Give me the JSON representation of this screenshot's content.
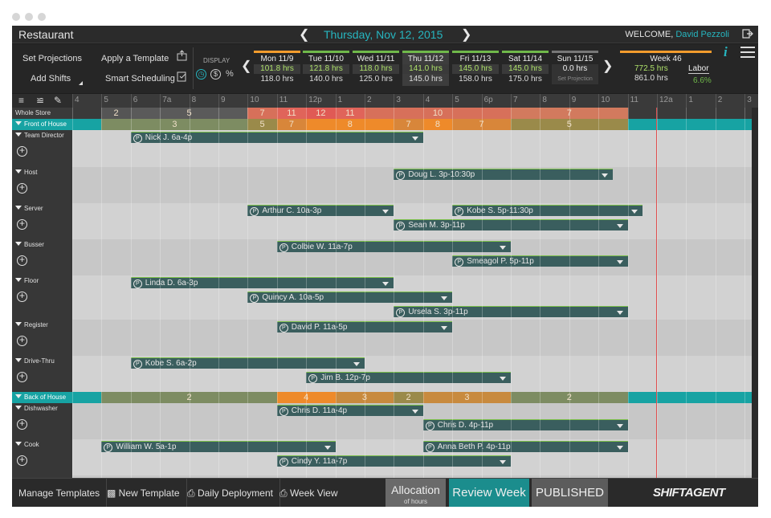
{
  "header": {
    "app_name": "Restaurant",
    "current_date": "Thursday, Nov 12, 2015",
    "welcome_label": "WELCOME,",
    "user_name": "David Pezzoli"
  },
  "controls": {
    "set_projections": "Set Projections",
    "add_shifts": "Add Shifts",
    "apply_template": "Apply a Template",
    "smart_scheduling": "Smart Scheduling",
    "display_label": "DISPLAY",
    "percent": "%"
  },
  "days": [
    {
      "label": "Mon 11/9",
      "hours": "101.8 hrs",
      "projection": "118.0 hrs"
    },
    {
      "label": "Tue 11/10",
      "hours": "121.8 hrs",
      "projection": "140.0 hrs"
    },
    {
      "label": "Wed 11/11",
      "hours": "118.0 hrs",
      "projection": "125.0 hrs"
    },
    {
      "label": "Thu 11/12",
      "hours": "141.0 hrs",
      "projection": "145.0 hrs"
    },
    {
      "label": "Fri 11/13",
      "hours": "145.0 hrs",
      "projection": "158.0 hrs"
    },
    {
      "label": "Sat 11/14",
      "hours": "145.0 hrs",
      "projection": "175.0 hrs"
    },
    {
      "label": "Sun 11/15",
      "hours": "0.0 hrs",
      "projection": "Set Projection"
    }
  ],
  "week": {
    "label": "Week 46",
    "hours": "772.5 hrs",
    "projection": "861.0 hrs",
    "labor_label": "Labor",
    "labor_value": "6.6%"
  },
  "timeline": [
    "4",
    "5",
    "6",
    "7a",
    "8",
    "9",
    "10",
    "11",
    "12p",
    "1",
    "2",
    "3",
    "4",
    "5",
    "6p",
    "7",
    "8",
    "9",
    "10",
    "11",
    "12a",
    "1",
    "2",
    "3"
  ],
  "summary": {
    "whole_store": {
      "label": "Whole Store",
      "segments": [
        {
          "v": "2",
          "c": "#555"
        },
        {
          "v": "5",
          "c": "#5a5a5a"
        },
        {
          "v": "7",
          "c": "#d7705a"
        },
        {
          "v": "11",
          "c": "#e0645a"
        },
        {
          "v": "12",
          "c": "#e05a55"
        },
        {
          "v": "11",
          "c": "#e0645a"
        },
        {
          "v": "10",
          "c": "#d7705a"
        },
        {
          "v": "7",
          "c": "#d27a5e"
        }
      ]
    },
    "front": {
      "label": "Front of House",
      "segments": [
        {
          "v": "3",
          "c": "#7d8c62"
        },
        {
          "v": "5",
          "c": "#9a8a4a"
        },
        {
          "v": "7",
          "c": "#d8863a"
        },
        {
          "v": "8",
          "c": "#ee8a2a"
        },
        {
          "v": "7",
          "c": "#d8863a"
        },
        {
          "v": "8",
          "c": "#ee8a2a"
        },
        {
          "v": "7",
          "c": "#d8863a"
        },
        {
          "v": "5",
          "c": "#9a8a4a"
        }
      ]
    },
    "back": {
      "label": "Back of House",
      "segments": [
        {
          "v": "2",
          "c": "#7d8c62"
        },
        {
          "v": "4",
          "c": "#ee8a2a"
        },
        {
          "v": "3",
          "c": "#c88a3e"
        },
        {
          "v": "2",
          "c": "#9a8a4a"
        },
        {
          "v": "3",
          "c": "#c88a3e"
        },
        {
          "v": "2",
          "c": "#7d8c62"
        }
      ]
    }
  },
  "positions": [
    {
      "name": "Team Director",
      "shifts": [
        {
          "who": "Nick J. 6a-4p"
        }
      ]
    },
    {
      "name": "Host",
      "shifts": [
        {
          "who": "Doug L. 3p-10:30p"
        }
      ]
    },
    {
      "name": "Server",
      "shifts": [
        {
          "who": "Arthur C. 10a-3p"
        },
        {
          "who": "Kobe S. 5p-11:30p"
        },
        {
          "who": "Sean M. 3p-11p"
        }
      ]
    },
    {
      "name": "Busser",
      "shifts": [
        {
          "who": "Colbie W. 11a-7p"
        },
        {
          "who": "Smeagol P. 5p-11p"
        }
      ]
    },
    {
      "name": "Floor",
      "shifts": [
        {
          "who": "Linda D. 6a-3p"
        },
        {
          "who": "Quincy A. 10a-5p"
        },
        {
          "who": "Ursela S. 3p-11p"
        }
      ]
    },
    {
      "name": "Register",
      "shifts": [
        {
          "who": "David P. 11a-5p"
        }
      ]
    },
    {
      "name": "Drive-Thru",
      "shifts": [
        {
          "who": "Kobe S. 6a-2p"
        },
        {
          "who": "Jim B. 12p-7p"
        }
      ]
    },
    {
      "name": "Dishwasher",
      "shifts": [
        {
          "who": "Chris D. 11a-4p"
        },
        {
          "who": "Chris D. 4p-11p"
        }
      ]
    },
    {
      "name": "Cook",
      "shifts": [
        {
          "who": "William W. 5a-1p"
        },
        {
          "who": "Anna Beth P. 4p-11p"
        },
        {
          "who": "Cindy Y. 11a-7p"
        }
      ]
    }
  ],
  "footer": {
    "manage_templates": "Manage Templates",
    "new_template": "New Template",
    "daily_deployment": "Daily Deployment",
    "week_view": "Week View",
    "allocation": "Allocation",
    "allocation_sub": "of hours",
    "review_week": "Review Week",
    "published": "PUBLISHED",
    "logo": "SHIFTAGENT"
  }
}
